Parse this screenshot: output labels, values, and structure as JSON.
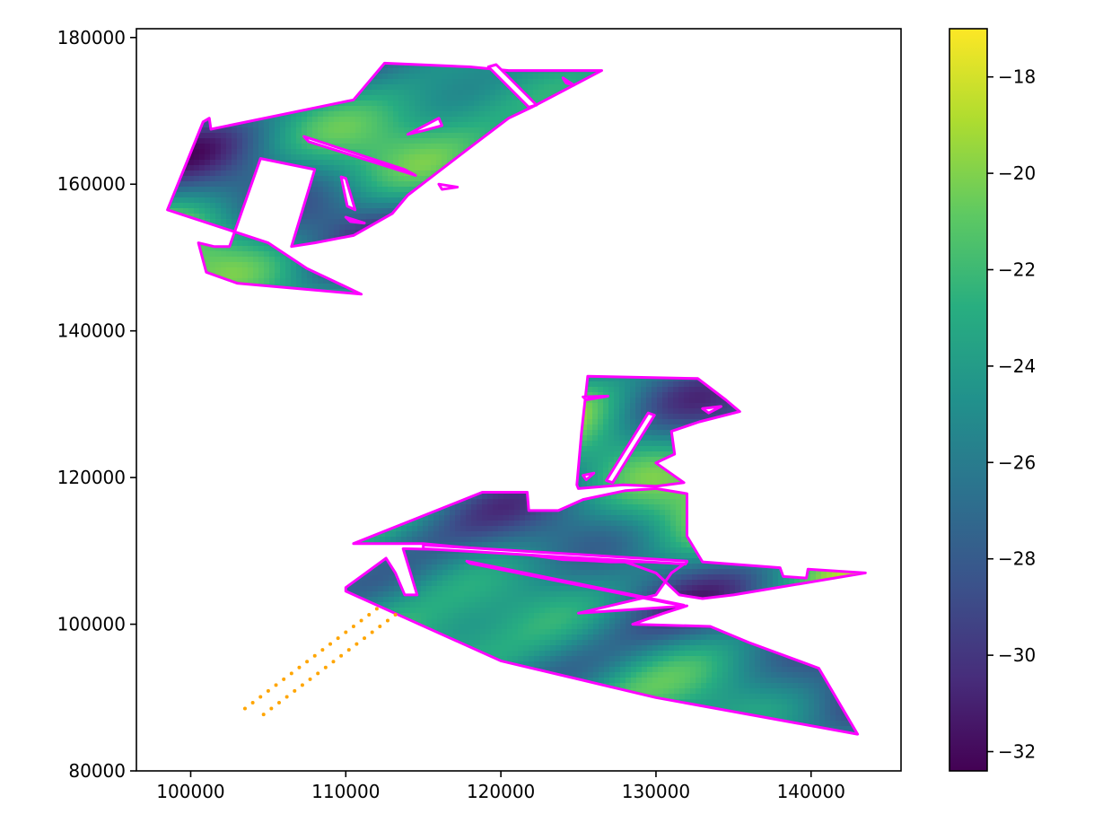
{
  "chart_data": {
    "type": "heatmap",
    "title": "",
    "xlabel": "",
    "ylabel": "",
    "xlim": [
      96500,
      145800
    ],
    "ylim": [
      80000,
      181200
    ],
    "x_ticks": [
      100000,
      110000,
      120000,
      130000,
      140000
    ],
    "x_tick_labels": [
      "100000",
      "110000",
      "120000",
      "130000",
      "140000"
    ],
    "y_ticks": [
      80000,
      100000,
      120000,
      140000,
      160000,
      180000
    ],
    "y_tick_labels": [
      "80000",
      "100000",
      "120000",
      "140000",
      "160000",
      "180000"
    ],
    "colormap": "viridis",
    "colorbar": {
      "min": -32.4,
      "max": -17.0,
      "ticks": [
        -32,
        -30,
        -28,
        -26,
        -24,
        -22,
        -20,
        -18
      ],
      "tick_labels": [
        "−32",
        "−30",
        "−28",
        "−26",
        "−24",
        "−22",
        "−20",
        "−18"
      ]
    },
    "outline_color": "#ff00ff",
    "point_color": "#ffa500",
    "polygons": [
      {
        "region": "north",
        "outer": [
          [
            98500,
            156500
          ],
          [
            100800,
            168500
          ],
          [
            101200,
            169000
          ],
          [
            101300,
            167500
          ],
          [
            110500,
            171500
          ],
          [
            112500,
            176500
          ],
          [
            118000,
            176000
          ],
          [
            120500,
            175500
          ],
          [
            126500,
            175500
          ],
          [
            122000,
            170500
          ],
          [
            120500,
            169000
          ],
          [
            118000,
            165000
          ],
          [
            114000,
            158500
          ],
          [
            113000,
            156000
          ],
          [
            110500,
            153000
          ],
          [
            108000,
            152000
          ],
          [
            106500,
            151500
          ],
          [
            108000,
            162000
          ],
          [
            104500,
            163500
          ],
          [
            102500,
            151500
          ],
          [
            101500,
            151500
          ],
          [
            100500,
            152000
          ],
          [
            101000,
            148000
          ],
          [
            103000,
            146500
          ],
          [
            111000,
            145000
          ],
          [
            107500,
            148500
          ],
          [
            105000,
            152000
          ],
          [
            98500,
            156500
          ]
        ],
        "holes": [
          [
            [
              114000,
              166800
            ],
            [
              116000,
              169000
            ],
            [
              116200,
              168000
            ],
            [
              115000,
              167300
            ],
            [
              114000,
              166800
            ]
          ],
          [
            [
              107300,
              166500
            ],
            [
              113800,
              162000
            ],
            [
              114500,
              161200
            ],
            [
              107600,
              165800
            ],
            [
              107300,
              166500
            ]
          ],
          [
            [
              119200,
              176000
            ],
            [
              121800,
              170500
            ],
            [
              122300,
              170800
            ],
            [
              119700,
              176300
            ],
            [
              119200,
              176000
            ]
          ],
          [
            [
              109700,
              161000
            ],
            [
              110100,
              157000
            ],
            [
              110600,
              156500
            ],
            [
              110000,
              160800
            ],
            [
              109700,
              161000
            ]
          ],
          [
            [
              116000,
              160000
            ],
            [
              117200,
              159600
            ],
            [
              116200,
              159300
            ],
            [
              116000,
              160000
            ]
          ],
          [
            [
              110000,
              155500
            ],
            [
              111200,
              154700
            ],
            [
              110300,
              154900
            ],
            [
              110000,
              155500
            ]
          ],
          [
            [
              124000,
              174500
            ],
            [
              124700,
              173500
            ],
            [
              124200,
              173800
            ],
            [
              124000,
              174500
            ]
          ]
        ]
      },
      {
        "region": "south-west",
        "outer": [
          [
            110000,
            105000
          ],
          [
            112600,
            109000
          ],
          [
            113200,
            107000
          ],
          [
            113800,
            104000
          ],
          [
            114600,
            104000
          ],
          [
            113700,
            110300
          ],
          [
            119700,
            110000
          ],
          [
            124800,
            108800
          ],
          [
            127000,
            108500
          ],
          [
            132000,
            108500
          ],
          [
            131000,
            107000
          ],
          [
            130000,
            104000
          ],
          [
            125000,
            101500
          ],
          [
            132000,
            102500
          ],
          [
            130500,
            101500
          ],
          [
            128500,
            100000
          ],
          [
            133500,
            99700
          ],
          [
            136000,
            97500
          ],
          [
            140500,
            94000
          ],
          [
            143000,
            85000
          ],
          [
            130000,
            90000
          ],
          [
            120000,
            95000
          ],
          [
            110000,
            104500
          ],
          [
            110000,
            105000
          ]
        ],
        "holes": [
          [
            [
              117800,
              108600
            ],
            [
              131800,
              102600
            ],
            [
              130800,
              102900
            ],
            [
              118000,
              108300
            ],
            [
              117800,
              108600
            ]
          ]
        ]
      },
      {
        "region": "south-band",
        "outer": [
          [
            110500,
            111000
          ],
          [
            118800,
            118000
          ],
          [
            121700,
            118000
          ],
          [
            121800,
            115500
          ],
          [
            123700,
            115500
          ],
          [
            125300,
            117000
          ],
          [
            128000,
            118200
          ],
          [
            130000,
            118500
          ],
          [
            132000,
            117800
          ],
          [
            132000,
            112000
          ],
          [
            133000,
            108500
          ],
          [
            138000,
            107700
          ],
          [
            138200,
            106500
          ],
          [
            139700,
            106300
          ],
          [
            139800,
            107500
          ],
          [
            143500,
            107000
          ],
          [
            135000,
            104000
          ],
          [
            133000,
            103500
          ],
          [
            131500,
            104000
          ],
          [
            130000,
            107000
          ],
          [
            128000,
            108500
          ],
          [
            124000,
            108800
          ],
          [
            120000,
            110000
          ],
          [
            115000,
            111000
          ],
          [
            110500,
            111000
          ]
        ],
        "holes": [
          [
            [
              115000,
              110800
            ],
            [
              132000,
              108600
            ],
            [
              131900,
              108200
            ],
            [
              115000,
              110300
            ],
            [
              115000,
              110800
            ]
          ]
        ]
      },
      {
        "region": "east",
        "outer": [
          [
            124900,
            119000
          ],
          [
            125200,
            126200
          ],
          [
            125600,
            133800
          ],
          [
            132700,
            133500
          ],
          [
            134500,
            130600
          ],
          [
            135400,
            129000
          ],
          [
            132800,
            127600
          ],
          [
            131000,
            126300
          ],
          [
            131200,
            123200
          ],
          [
            130000,
            122000
          ],
          [
            131800,
            119300
          ],
          [
            130000,
            118800
          ],
          [
            127900,
            119000
          ],
          [
            125000,
            118500
          ],
          [
            124900,
            119000
          ]
        ],
        "holes": [
          [
            [
              127200,
              119300
            ],
            [
              129900,
              128500
            ],
            [
              129500,
              128800
            ],
            [
              126800,
              119600
            ],
            [
              127200,
              119300
            ]
          ],
          [
            [
              125300,
              131000
            ],
            [
              126900,
              131100
            ],
            [
              125500,
              130600
            ],
            [
              125300,
              131000
            ]
          ],
          [
            [
              133000,
              129400
            ],
            [
              134200,
              129700
            ],
            [
              133400,
              128800
            ],
            [
              133000,
              129400
            ]
          ],
          [
            [
              125300,
              120300
            ],
            [
              126000,
              120600
            ],
            [
              125500,
              119700
            ],
            [
              125300,
              120300
            ]
          ]
        ]
      }
    ],
    "scatter_points": [
      [
        103500,
        88500
      ],
      [
        104000,
        89300
      ],
      [
        104500,
        90100
      ],
      [
        105000,
        90900
      ],
      [
        105500,
        91700
      ],
      [
        106000,
        92500
      ],
      [
        106500,
        93300
      ],
      [
        107000,
        94100
      ],
      [
        107500,
        94900
      ],
      [
        108000,
        95700
      ],
      [
        108500,
        96500
      ],
      [
        109000,
        97300
      ],
      [
        109500,
        98100
      ],
      [
        110000,
        98900
      ],
      [
        110500,
        99700
      ],
      [
        111000,
        100500
      ],
      [
        111500,
        101300
      ],
      [
        112000,
        102100
      ],
      [
        104700,
        87700
      ],
      [
        105200,
        88500
      ],
      [
        105700,
        89300
      ],
      [
        106200,
        90100
      ],
      [
        106700,
        90900
      ],
      [
        107200,
        91700
      ],
      [
        107700,
        92500
      ],
      [
        108200,
        93300
      ],
      [
        108700,
        94100
      ],
      [
        109200,
        94900
      ],
      [
        109700,
        95700
      ],
      [
        110200,
        96500
      ],
      [
        110700,
        97300
      ],
      [
        111200,
        98100
      ],
      [
        111700,
        98900
      ],
      [
        112200,
        99700
      ],
      [
        112700,
        100500
      ],
      [
        113200,
        101300
      ]
    ]
  }
}
